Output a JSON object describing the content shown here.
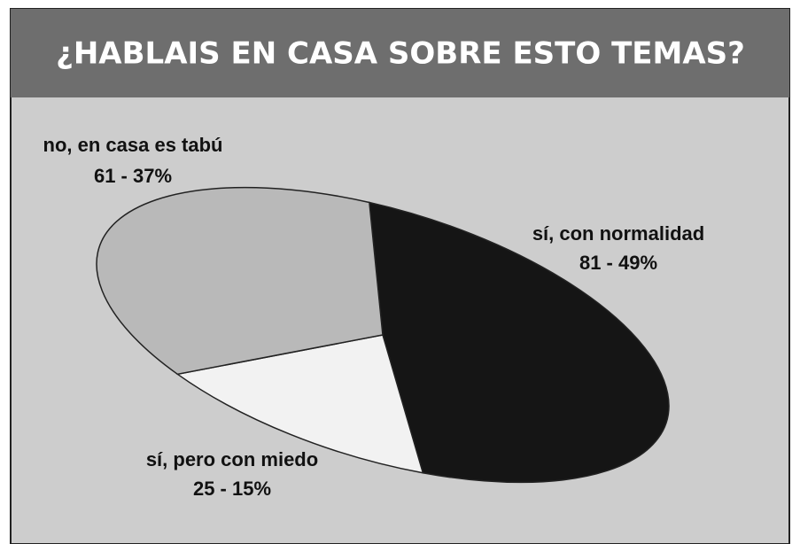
{
  "chart_data": {
    "type": "pie",
    "title": "¿HABLAIS EN CASA SOBRE ESTO TEMAS?",
    "categories": [
      "sí, con normalidad",
      "sí, pero con miedo",
      "no, en casa es tabú"
    ],
    "values": [
      81,
      25,
      61
    ],
    "value_labels": [
      "81 - 49%",
      "25 - 15%",
      "61 - 37%"
    ],
    "colors": [
      "#151515",
      "#f2f2f2",
      "#b9b9b9"
    ]
  }
}
